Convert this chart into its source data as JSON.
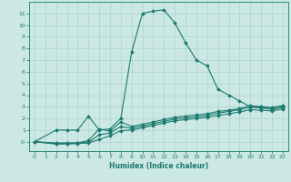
{
  "xlabel": "Humidex (Indice chaleur)",
  "bg_color": "#cce8e4",
  "grid_color": "#aad4ce",
  "line_color": "#1a7a6e",
  "spine_color": "#1a7a6e",
  "xlim": [
    -0.5,
    23.5
  ],
  "ylim": [
    -0.8,
    12.0
  ],
  "xticks": [
    0,
    1,
    2,
    3,
    4,
    5,
    6,
    7,
    8,
    9,
    10,
    11,
    12,
    13,
    14,
    15,
    16,
    17,
    18,
    19,
    20,
    21,
    22,
    23
  ],
  "yticks": [
    0,
    1,
    2,
    3,
    4,
    5,
    6,
    7,
    8,
    9,
    10,
    11
  ],
  "series": [
    {
      "x": [
        0,
        2,
        3,
        4,
        5,
        6,
        7,
        8,
        9,
        10,
        11,
        12,
        13,
        14,
        15,
        16,
        17,
        18,
        19,
        20,
        21,
        22,
        23
      ],
      "y": [
        0,
        1.0,
        1.0,
        1.0,
        2.2,
        1.0,
        1.1,
        2.0,
        7.7,
        11.0,
        11.2,
        11.3,
        10.2,
        8.5,
        7.0,
        6.5,
        4.5,
        4.0,
        3.5,
        3.0,
        3.0,
        2.8,
        3.0
      ]
    },
    {
      "x": [
        0,
        2,
        3,
        4,
        5,
        6,
        7,
        8,
        9,
        10,
        11,
        12,
        13,
        14,
        15,
        16,
        17,
        18,
        19,
        20,
        21,
        22,
        23
      ],
      "y": [
        0,
        -0.1,
        -0.1,
        -0.1,
        0.1,
        1.1,
        0.9,
        1.7,
        1.3,
        1.5,
        1.7,
        1.9,
        2.1,
        2.2,
        2.3,
        2.4,
        2.6,
        2.7,
        2.85,
        3.1,
        3.0,
        2.95,
        3.1
      ]
    },
    {
      "x": [
        0,
        2,
        3,
        4,
        5,
        6,
        7,
        8,
        9,
        10,
        11,
        12,
        13,
        14,
        15,
        16,
        17,
        18,
        19,
        20,
        21,
        22,
        23
      ],
      "y": [
        0,
        -0.15,
        -0.15,
        -0.1,
        -0.05,
        0.6,
        0.75,
        1.3,
        1.15,
        1.35,
        1.55,
        1.75,
        1.95,
        2.05,
        2.15,
        2.25,
        2.45,
        2.6,
        2.75,
        2.95,
        2.9,
        2.8,
        2.95
      ]
    },
    {
      "x": [
        0,
        2,
        3,
        4,
        5,
        6,
        7,
        8,
        9,
        10,
        11,
        12,
        13,
        14,
        15,
        16,
        17,
        18,
        19,
        20,
        21,
        22,
        23
      ],
      "y": [
        0,
        -0.2,
        -0.2,
        -0.15,
        -0.1,
        0.2,
        0.5,
        0.95,
        1.0,
        1.2,
        1.4,
        1.6,
        1.8,
        1.9,
        2.0,
        2.1,
        2.25,
        2.4,
        2.55,
        2.75,
        2.7,
        2.65,
        2.8
      ]
    }
  ]
}
